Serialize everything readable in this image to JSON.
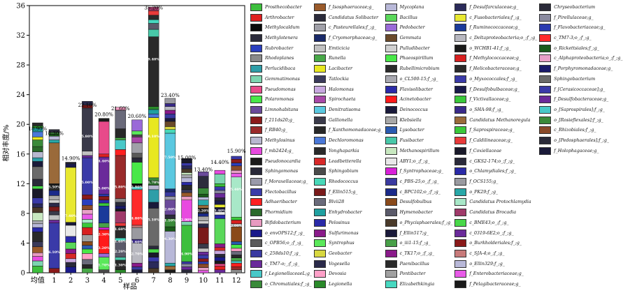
{
  "chart_data": {
    "type": "bar",
    "stacked": true,
    "xlabel": "样品",
    "ylabel": "相对丰度/%",
    "ylim": [
      0,
      36
    ],
    "yticks": [
      0,
      4,
      8,
      12,
      16,
      20,
      24,
      28,
      32,
      36
    ],
    "categories": [
      "均值",
      "1",
      "2",
      "3",
      "4",
      "5",
      "6",
      "7",
      "8",
      "9",
      "10",
      "11",
      "12"
    ],
    "totals": [
      18.9,
      18.3,
      14.9,
      22.1,
      20.8,
      21.6,
      20.6,
      35.2,
      23.4,
      15.0,
      13.4,
      14.4,
      15.9
    ],
    "total_labels": [
      "18.90%",
      "18.30%",
      "14.90%",
      "22.10%",
      "20.80%",
      "21.60%",
      "20.60%",
      "35.20%",
      "23.40%",
      "15.00%",
      "13.40%",
      "14.40%",
      "15.90%"
    ],
    "segment_labels": [
      {
        "sample": "1",
        "y": 2.8,
        "text": "6.10%"
      },
      {
        "sample": "1",
        "y": 11.6,
        "text": "5.50%"
      },
      {
        "sample": "2",
        "y": 7.7,
        "text": "7.40%"
      },
      {
        "sample": "3",
        "y": 12.2,
        "text": "5.00%"
      },
      {
        "sample": "3",
        "y": 18.4,
        "text": "5.80%"
      },
      {
        "sample": "4",
        "y": 1.1,
        "text": "1.70%"
      },
      {
        "sample": "4",
        "y": 3.4,
        "text": "3.20%"
      },
      {
        "sample": "4",
        "y": 5.2,
        "text": "2.30%"
      },
      {
        "sample": "4",
        "y": 11.4,
        "text": "5.00%"
      },
      {
        "sample": "4",
        "y": 15.1,
        "text": "4.40%"
      },
      {
        "sample": "5",
        "y": 1.1,
        "text": "1.30%"
      },
      {
        "sample": "5",
        "y": 2.9,
        "text": "2.20%"
      },
      {
        "sample": "5",
        "y": 4.3,
        "text": "1.60%"
      },
      {
        "sample": "5",
        "y": 5.9,
        "text": "1.60%"
      },
      {
        "sample": "5",
        "y": 11.6,
        "text": "5.80%"
      },
      {
        "sample": "6",
        "y": 2.6,
        "text": "2.70%"
      },
      {
        "sample": "6",
        "y": 4.2,
        "text": "1.60%"
      },
      {
        "sample": "6",
        "y": 7.4,
        "text": "4.80%"
      },
      {
        "sample": "6",
        "y": 11.6,
        "text": "2.90%"
      },
      {
        "sample": "7",
        "y": 7.2,
        "text": "5.10%"
      },
      {
        "sample": "7",
        "y": 12.2,
        "text": "1.70%"
      },
      {
        "sample": "7",
        "y": 18.4,
        "text": "8.10%"
      },
      {
        "sample": "7",
        "y": 28.8,
        "text": "9.40%"
      },
      {
        "sample": "8",
        "y": 4.6,
        "text": "4.30%"
      },
      {
        "sample": "8",
        "y": 7.1,
        "text": "1.10%"
      },
      {
        "sample": "8",
        "y": 8.6,
        "text": "2.00%"
      },
      {
        "sample": "8",
        "y": 15.6,
        "text": "7.50%"
      },
      {
        "sample": "9",
        "y": 2.6,
        "text": "4.90%"
      },
      {
        "sample": "9",
        "y": 7.2,
        "text": "2.90%"
      },
      {
        "sample": "10",
        "y": 8.4,
        "text": "2.20%"
      },
      {
        "sample": "11",
        "y": 8.4,
        "text": "3.40%"
      },
      {
        "sample": "12",
        "y": 6.4,
        "text": "2.00%"
      },
      {
        "sample": "12",
        "y": 11.3,
        "text": "5.40%"
      }
    ],
    "series": [
      {
        "name": "Prosthecobacter",
        "color": "#3dbf3d"
      },
      {
        "name": "Arthrobacter",
        "color": "#e02020"
      },
      {
        "name": "Methylocaldum",
        "color": "#0a0a0a"
      },
      {
        "name": "Methylotenera",
        "color": "#2c2c3c"
      },
      {
        "name": "Rubrobacter",
        "color": "#2a3fbf"
      },
      {
        "name": "Rhodoplanes",
        "color": "#8a8a8a"
      },
      {
        "name": "Perlucidibaca",
        "color": "#2e9ea8"
      },
      {
        "name": "Gemmatimonas",
        "color": "#7cd5b0"
      },
      {
        "name": "Pseudomonas",
        "color": "#e84a8a"
      },
      {
        "name": "Polaromonas",
        "color": "#48e848"
      },
      {
        "name": "Limnohabitans",
        "color": "#6a4a9a"
      },
      {
        "name": "f_211ds20;g_",
        "color": "#8b1a1a"
      },
      {
        "name": "f_RB40;g_",
        "color": "#9a2a2a"
      },
      {
        "name": "Methylosinus",
        "color": "#b8b8d0"
      },
      {
        "name": "f_mb2424;g_",
        "color": "#e84ae0"
      },
      {
        "name": "Pseudonocardia",
        "color": "#1a1a1a"
      },
      {
        "name": "Sphingomonas",
        "color": "#282838"
      },
      {
        "name": "f_Moraxellaceae;g_",
        "color": "#9a9aaa"
      },
      {
        "name": "Flectobacillus",
        "color": "#3a3aa8"
      },
      {
        "name": "Adhaeribacter",
        "color": "#ff2020"
      },
      {
        "name": "Phormidium",
        "color": "#2a6a2a"
      },
      {
        "name": "Bifidobacterium",
        "color": "#e89ac0"
      },
      {
        "name": "o_envOPS12;f_;g_",
        "color": "#1a1a8a"
      },
      {
        "name": "c_OPB56;o_;f_;g_",
        "color": "#5a5a5a"
      },
      {
        "name": "c_258ds10;f_;g_",
        "color": "#3a3aa0"
      },
      {
        "name": "c_TM7-o;_;f_;g_",
        "color": "#6a2a9a"
      },
      {
        "name": "f_LegionellaceaeL;g_",
        "color": "#48c8c8"
      },
      {
        "name": "o_Chromatiales;f_;g_",
        "color": "#3a8a3a"
      },
      {
        "name": "f_Isosphaeraceae;g_",
        "color": "#9a5a2a"
      },
      {
        "name": "Candidatus Solibacter",
        "color": "#2a2a3a"
      },
      {
        "name": "c_Pasteurellales;f_;g_",
        "color": "#a0a0a8"
      },
      {
        "name": "f_Cryomorphaceae;g_",
        "color": "#1a2a6a"
      },
      {
        "name": "Emticicia",
        "color": "#c0c0c0"
      },
      {
        "name": "Runella",
        "color": "#48a848"
      },
      {
        "name": "Lacibacter",
        "color": "#e8e820"
      },
      {
        "name": "Tatlockia",
        "color": "#3a3a5a"
      },
      {
        "name": "Halomonas",
        "color": "#c8a8e0"
      },
      {
        "name": "Spirochaeta",
        "color": "#a848a8"
      },
      {
        "name": "Denitratisoma",
        "color": "#5ac8e0"
      },
      {
        "name": "Gallionella",
        "color": "#3a3a4a"
      },
      {
        "name": "f_Xanthomonadaceae;g_",
        "color": "#282828"
      },
      {
        "name": "Dechloromonas",
        "color": "#4a78d8"
      },
      {
        "name": "Yonghaparkia",
        "color": "#2a2a2a"
      },
      {
        "name": "Leadbetterella",
        "color": "#d82828"
      },
      {
        "name": "Sphingobium",
        "color": "#4a4a4a"
      },
      {
        "name": "Rhodococcus",
        "color": "#48d8b8"
      },
      {
        "name": "f_Ellin515;g_",
        "color": "#7a1a1a"
      },
      {
        "name": "Blvii28",
        "color": "#6a6a7a"
      },
      {
        "name": "Enhydrobacter",
        "color": "#20a0a0"
      },
      {
        "name": "Pelosinus",
        "color": "#2a2aa8"
      },
      {
        "name": "Sulfurimonas",
        "color": "#8a1a8a"
      },
      {
        "name": "Syntrophus",
        "color": "#5ae85a"
      },
      {
        "name": "Geobacter",
        "color": "#d8d840"
      },
      {
        "name": "Vogesella",
        "color": "#2a2a4a"
      },
      {
        "name": "Devosia",
        "color": "#ffa0c8"
      },
      {
        "name": "Legionella",
        "color": "#2a8a2a"
      },
      {
        "name": "Mycoplana",
        "color": "#b8b8d8"
      },
      {
        "name": "Bacillus",
        "color": "#5ad85a"
      },
      {
        "name": "Pedobacter",
        "color": "#9a6ad8"
      },
      {
        "name": "Gemmata",
        "color": "#6a4a2a"
      },
      {
        "name": "Pulludibacter",
        "color": "#d0d0d0"
      },
      {
        "name": "Phaeospirillum",
        "color": "#48e848"
      },
      {
        "name": "Rubellimicrobium",
        "color": "#2a2a2a"
      },
      {
        "name": "o_CL500-15;f_;g_",
        "color": "#a8a8b0"
      },
      {
        "name": "Flavisolibacter",
        "color": "#2a2aa8"
      },
      {
        "name": "Acinetobacter",
        "color": "#ff1a1a"
      },
      {
        "name": "Deinococcus",
        "color": "#1a1a3a"
      },
      {
        "name": "Klebsiella",
        "color": "#a8a8a8"
      },
      {
        "name": "Lysobacter",
        "color": "#2a5ab0"
      },
      {
        "name": "Fusibacter",
        "color": "#48c8a8"
      },
      {
        "name": "Methanospirillum",
        "color": "#c8e8c0"
      },
      {
        "name": "ABY1;o_;f_;g_",
        "color": "#e8e8e8"
      },
      {
        "name": "f_Syntrophaceae;g_",
        "color": "#d820d8"
      },
      {
        "name": "c_PBS-25;o_;f_;g_",
        "color": "#3a3aa0"
      },
      {
        "name": "c_BPC102;o_;f_;g_",
        "color": "#1a2a8a"
      },
      {
        "name": "Desulfobulbus",
        "color": "#8a4a1a"
      },
      {
        "name": "Hymenobacter",
        "color": "#5a5a6a"
      },
      {
        "name": "o_Phycisphaerales;f_;g_",
        "color": "#4a3a2a"
      },
      {
        "name": "f_Ellin517;g_",
        "color": "#1a1a3a"
      },
      {
        "name": "o_iii1-15;f_;g_",
        "color": "#48a048"
      },
      {
        "name": "c_TK17;o_;f_;g_",
        "color": "#8a1a8a"
      },
      {
        "name": "Paenibacillus",
        "color": "#2a2a2a"
      },
      {
        "name": "Pontibacter",
        "color": "#a0a0a0"
      },
      {
        "name": "Elizabethkingia",
        "color": "#48d8c0"
      },
      {
        "name": "f_Desulfarculaceae;g_",
        "color": "#2a2a5a"
      },
      {
        "name": "c_Fusobacteriales;f_;g_",
        "color": "#e8e830"
      },
      {
        "name": "f_Ruminococcaceae;g_",
        "color": "#1a3a9a"
      },
      {
        "name": "c_Deltaproteobacteria;o_;f_;g_",
        "color": "#b8b8c0"
      },
      {
        "name": "o_WCHB1-41;f_;g_",
        "color": "#1a1a1a"
      },
      {
        "name": "f_Methylococcaceae;g_",
        "color": "#d82020"
      },
      {
        "name": "f_Helicobacteraceae;g_",
        "color": "#2a2a2a"
      },
      {
        "name": "o_Myxococcales;f_;g_",
        "color": "#3a3aa8"
      },
      {
        "name": "f_Desulfobulbaceae;g_",
        "color": "#1a1a4a"
      },
      {
        "name": "f_Victivallaceae;g_",
        "color": "#3ac83a"
      },
      {
        "name": "o_SHA-98;f_;g_",
        "color": "#3a2a8a"
      },
      {
        "name": "Candidatus Methanoregula",
        "color": "#9a6a3a"
      },
      {
        "name": "f_Saprospiraceae;g_",
        "color": "#3ac83a"
      },
      {
        "name": "f_Caldilineaceae;g_",
        "color": "#e83a3a"
      },
      {
        "name": "f_Coxiellaceae",
        "color": "#1a1a2a"
      },
      {
        "name": "c_GKS2-174;o_;f_;g_",
        "color": "#2a2a3a"
      },
      {
        "name": "o_Chlamydiales;f_;g_",
        "color": "#2a2aa8"
      },
      {
        "name": "f_OCS155;g_",
        "color": "#9a9aa0"
      },
      {
        "name": "o_PK29;f_;g_",
        "color": "#28a8a8"
      },
      {
        "name": "Candidatus Protochlamydia",
        "color": "#a8e8c8"
      },
      {
        "name": "Candidatus Brocadia",
        "color": "#a03a6a"
      },
      {
        "name": "c_BME43;o_;f_;g_",
        "color": "#48d848"
      },
      {
        "name": "c_0319-6E2;o_;f_;g_",
        "color": "#6a2a9a"
      },
      {
        "name": "o_Burkholderiales;f_;g_",
        "color": "#8a1a1a"
      },
      {
        "name": "c_SJA-4;o_;f_;g_",
        "color": "#c87a7a"
      },
      {
        "name": "o_Ellin329;f_;g_",
        "color": "#b8b8d8"
      },
      {
        "name": "f_Enterobacteriaceae;g_",
        "color": "#e85ae8"
      },
      {
        "name": "f_Pelagibacteraceae;g_",
        "color": "#1a1a1a"
      },
      {
        "name": "Chryseobacterium",
        "color": "#2a2a3a"
      },
      {
        "name": "f_Pirellulaceae;g_",
        "color": "#8a8aa0"
      },
      {
        "name": "f_Flavobacteriaceae;g_",
        "color": "#2a3ab0"
      },
      {
        "name": "c_TM7-3;o_;f_;g_",
        "color": "#ff2a2a"
      },
      {
        "name": "o_Rickettsiales;f_;g_",
        "color": "#1a5a1a"
      },
      {
        "name": "c_Alphaproteobacteria;o_;f_;g_",
        "color": "#e8a0c8"
      },
      {
        "name": "f_Porphyromonadaceae;g_",
        "color": "#1a1a6a"
      },
      {
        "name": "Sphingobacterium",
        "color": "#6a6a6a"
      },
      {
        "name": "f_[Cerasicoccaceae];g_",
        "color": "#3a3aa8"
      },
      {
        "name": "f_Desulfobacteraceae;g_",
        "color": "#6a2a9a"
      },
      {
        "name": "o_[Saprospirales];f_;g_",
        "color": "#48c8c8"
      },
      {
        "name": "o_[Rosieflexales];f_;g_",
        "color": "#3a8a3a"
      },
      {
        "name": "c_Rhizobiales;f_;g_",
        "color": "#8a4a2a"
      },
      {
        "name": "o_[Pedosphaerales];f_;g_",
        "color": "#2a2a3a"
      },
      {
        "name": "f_Holophagaceae;g_",
        "color": "#1a1a3a"
      }
    ],
    "stacks": [
      [
        0.9,
        0.7,
        0.6,
        0.5,
        0.8,
        0.7,
        1.3,
        0.6,
        0.5,
        0.4,
        1.1,
        0.7,
        0.5,
        0.8,
        1.2,
        0.4,
        0.9,
        1.7,
        0.7,
        0.5,
        0.8,
        0.7,
        0.9,
        0.4,
        0.7,
        0.5,
        0.3,
        0.4
      ],
      [
        0.6,
        6.1,
        0.4,
        0.7,
        0.5,
        0.6,
        0.5,
        0.4,
        0.6,
        0.7,
        0.4,
        0.5,
        5.5,
        0.4,
        0.5,
        0.3,
        0.2,
        0.4
      ],
      [
        0.8,
        0.6,
        0.5,
        0.7,
        0.6,
        0.9,
        0.8,
        1.5,
        0.4,
        7.4,
        0.5,
        0.2
      ],
      [
        0.6,
        0.5,
        0.7,
        0.8,
        0.6,
        0.5,
        0.5,
        0.9,
        1.0,
        0.6,
        0.5,
        0.7,
        0.6,
        0.6,
        0.8,
        0.6,
        5.0,
        0.3,
        0.6,
        5.8,
        0.4,
        0.5
      ],
      [
        0.4,
        1.7,
        0.5,
        3.2,
        0.3,
        0.6,
        2.3,
        0.4,
        0.4,
        0.5,
        0.3,
        5.0,
        0.4,
        4.4,
        0.4
      ],
      [
        0.4,
        1.3,
        0.4,
        2.2,
        0.4,
        1.6,
        0.4,
        1.6,
        0.3,
        0.4,
        0.5,
        0.5,
        5.8,
        0.8,
        1.3,
        0.3,
        1.2,
        2.5,
        0.4
      ],
      [
        0.4,
        0.4,
        0.5,
        2.7,
        0.5,
        1.6,
        0.3,
        4.8,
        0.4,
        0.4,
        2.9,
        0.6,
        0.6,
        1.4,
        0.8,
        0.3,
        0.5,
        1.5
      ],
      [
        0.6,
        0.9,
        0.6,
        0.6,
        0.5,
        0.4,
        5.1,
        0.8,
        1.7,
        0.6,
        0.6,
        0.4,
        8.1,
        0.5,
        0.6,
        0.4,
        9.4,
        1.0,
        0.8,
        0.5,
        0.6,
        0.6,
        0.5
      ],
      [
        0.4,
        0.5,
        0.4,
        4.3,
        0.6,
        1.1,
        0.5,
        2.0,
        0.5,
        0.6,
        0.4,
        7.5,
        0.5,
        0.4,
        0.7,
        0.4,
        0.6,
        0.5,
        0.5,
        0.4,
        0.7
      ],
      [
        0.4,
        0.4,
        0.4,
        0.3,
        4.9,
        0.5,
        2.9,
        0.5,
        0.5,
        0.4,
        0.6,
        0.4,
        0.6,
        0.4,
        0.3,
        0.5,
        0.4,
        0.4,
        0.6
      ],
      [
        0.3,
        0.4,
        0.5,
        0.3,
        0.4,
        0.5,
        0.4,
        0.5,
        0.6,
        2.2,
        0.5,
        0.4,
        0.6,
        0.4,
        0.4,
        0.3,
        0.4,
        0.7,
        0.4,
        0.4,
        0.8,
        1.6,
        0.6
      ],
      [
        0.4,
        0.5,
        0.3,
        0.4,
        0.5,
        0.4,
        0.5,
        0.4,
        0.5,
        3.4,
        0.5,
        0.4,
        0.6,
        0.4,
        0.5,
        0.4,
        0.6,
        0.4,
        0.5,
        0.4,
        1.3,
        0.5
      ],
      [
        0.4,
        0.4,
        0.5,
        0.3,
        0.4,
        0.4,
        0.5,
        0.4,
        0.5,
        0.4,
        2.0,
        0.4,
        0.5,
        0.4,
        5.4,
        0.5,
        0.4,
        0.6,
        0.4,
        0.5,
        0.4
      ]
    ]
  }
}
